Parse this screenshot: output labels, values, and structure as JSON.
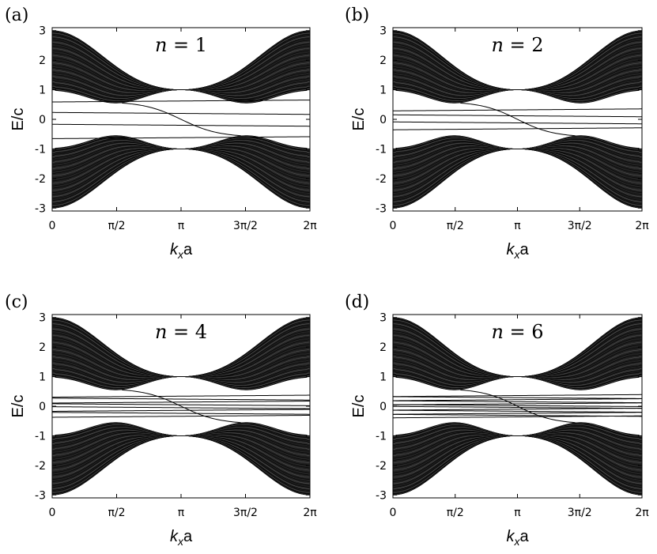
{
  "figure": {
    "panels": [
      {
        "label": "(a)",
        "n_prefix": "n = ",
        "n_value": "1",
        "n": 1
      },
      {
        "label": "(b)",
        "n_prefix": "n = ",
        "n_value": "2",
        "n": 2
      },
      {
        "label": "(c)",
        "n_prefix": "n = ",
        "n_value": "4",
        "n": 4
      },
      {
        "label": "(d)",
        "n_prefix": "n = ",
        "n_value": "6",
        "n": 6
      }
    ],
    "ylabel": "E/c",
    "xlabel_main": "k",
    "xlabel_sub": "x",
    "xlabel_tail": "a"
  },
  "chart_data": [
    {
      "type": "line",
      "panel": "(a)",
      "title": "",
      "annotation": "n = 1",
      "xlabel": "kxa",
      "ylabel": "E/c",
      "xlim": [
        0,
        6.2832
      ],
      "ylim": [
        -3.1,
        3.1
      ],
      "xticks": [
        "0",
        "π/2",
        "π",
        "3π/2",
        "2π"
      ],
      "yticks": [
        "-3",
        "-2",
        "-1",
        "0",
        "1",
        "2",
        "3"
      ],
      "bands": {
        "upper_range": [
          1,
          3
        ],
        "lower_range": [
          -3,
          -1
        ],
        "gap_min_at_x": 3.1416,
        "gap_edge_at_x_0": 1.0,
        "gap_edge_at_pi_half": 0.55
      },
      "in_gap_flat_levels": [
        0.62,
        0.2,
        -0.2,
        -0.62
      ],
      "crossing_mode": {
        "x": [
          1.7,
          3.1416,
          4.6
        ],
        "y": [
          0.6,
          0.0,
          -0.6
        ]
      }
    },
    {
      "type": "line",
      "panel": "(b)",
      "title": "",
      "annotation": "n = 2",
      "xlabel": "kxa",
      "ylabel": "E/c",
      "xlim": [
        0,
        6.2832
      ],
      "ylim": [
        -3.1,
        3.1
      ],
      "xticks": [
        "0",
        "π/2",
        "π",
        "3π/2",
        "2π"
      ],
      "yticks": [
        "-3",
        "-2",
        "-1",
        "0",
        "1",
        "2",
        "3"
      ],
      "bands": {
        "upper_range": [
          1,
          3
        ],
        "lower_range": [
          -3,
          -1
        ],
        "gap_min_at_x": 3.1416,
        "gap_edge_at_x_0": 1.0,
        "gap_edge_at_pi_half": 0.55
      },
      "in_gap_flat_levels": [
        0.32,
        0.12,
        -0.12,
        -0.32
      ],
      "crossing_mode": {
        "x": [
          1.7,
          3.1416,
          4.6
        ],
        "y": [
          0.6,
          0.0,
          -0.6
        ]
      }
    },
    {
      "type": "line",
      "panel": "(c)",
      "title": "",
      "annotation": "n = 4",
      "xlabel": "kxa",
      "ylabel": "E/c",
      "xlim": [
        0,
        6.2832
      ],
      "ylim": [
        -3.1,
        3.1
      ],
      "xticks": [
        "0",
        "π/2",
        "π",
        "3π/2",
        "2π"
      ],
      "yticks": [
        "-3",
        "-2",
        "-1",
        "0",
        "1",
        "2",
        "3"
      ],
      "bands": {
        "upper_range": [
          1,
          3
        ],
        "lower_range": [
          -3,
          -1
        ],
        "gap_min_at_x": 3.1416,
        "gap_edge_at_x_0": 1.0,
        "gap_edge_at_pi_half": 0.55
      },
      "in_gap_flat_levels": [
        0.34,
        0.24,
        0.14,
        0.05,
        -0.05,
        -0.14,
        -0.24,
        -0.34
      ],
      "crossing_mode": {
        "x": [
          1.7,
          3.1416,
          4.6
        ],
        "y": [
          0.6,
          0.0,
          -0.6
        ]
      }
    },
    {
      "type": "line",
      "panel": "(d)",
      "title": "",
      "annotation": "n = 6",
      "xlabel": "kxa",
      "ylabel": "E/c",
      "xlim": [
        0,
        6.2832
      ],
      "ylim": [
        -3.1,
        3.1
      ],
      "xticks": [
        "0",
        "π/2",
        "π",
        "3π/2",
        "2π"
      ],
      "yticks": [
        "-3",
        "-2",
        "-1",
        "0",
        "1",
        "2",
        "3"
      ],
      "bands": {
        "upper_range": [
          1,
          3
        ],
        "lower_range": [
          -3,
          -1
        ],
        "gap_min_at_x": 3.1416,
        "gap_edge_at_x_0": 1.0,
        "gap_edge_at_pi_half": 0.55
      },
      "in_gap_flat_levels": [
        0.36,
        0.29,
        0.22,
        0.15,
        0.08,
        0.02,
        -0.04,
        -0.1,
        -0.17,
        -0.24,
        -0.31,
        -0.36
      ],
      "crossing_mode": {
        "x": [
          1.7,
          3.1416,
          4.6
        ],
        "y": [
          0.6,
          0.0,
          -0.6
        ]
      }
    }
  ]
}
